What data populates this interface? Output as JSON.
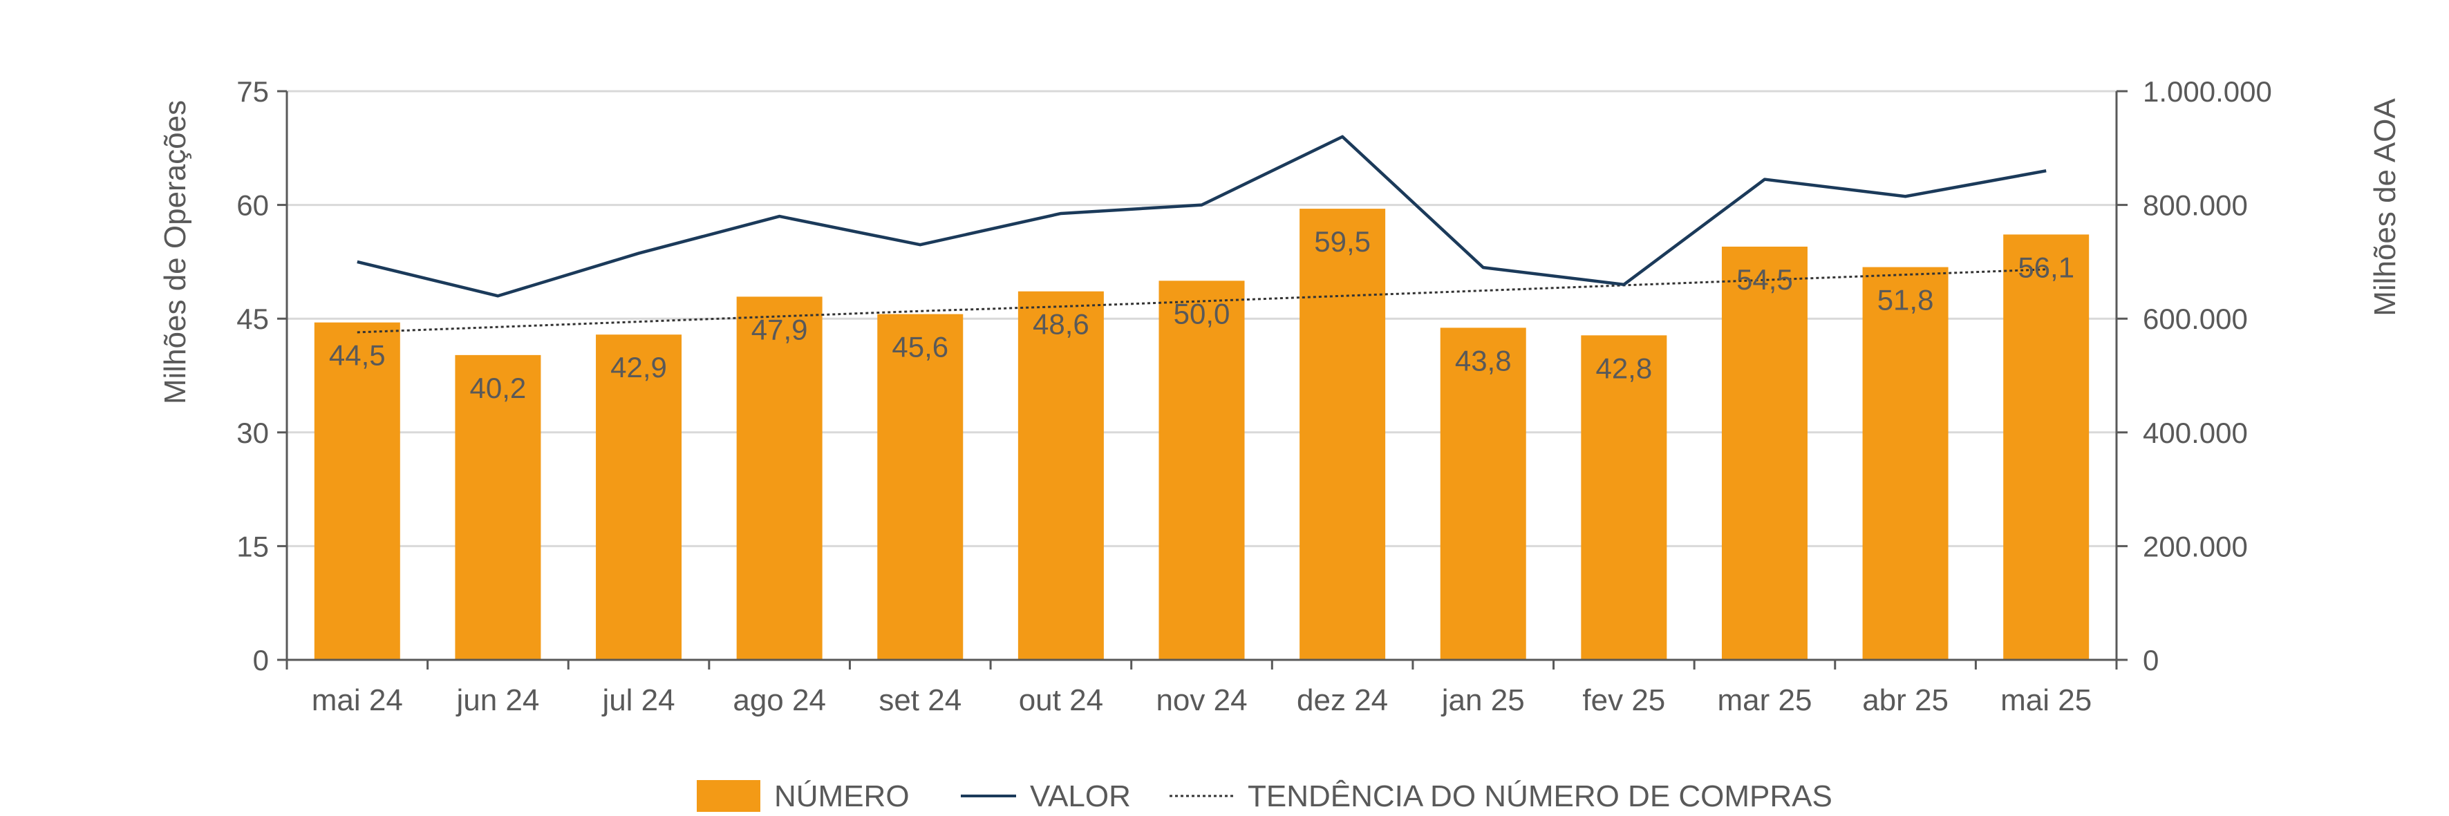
{
  "chart_data": {
    "type": "bar",
    "categories": [
      "mai 24",
      "jun 24",
      "jul 24",
      "ago 24",
      "set 24",
      "out 24",
      "nov 24",
      "dez 24",
      "jan 25",
      "fev 25",
      "mar 25",
      "abr 25",
      "mai 25"
    ],
    "series": [
      {
        "name": "NÚMERO",
        "type": "bar",
        "axis": "left",
        "values": [
          44.5,
          40.2,
          42.9,
          47.9,
          45.6,
          48.6,
          50.0,
          59.5,
          43.8,
          42.8,
          54.5,
          51.8,
          56.1
        ],
        "labels": [
          "44,5",
          "40,2",
          "42,9",
          "47,9",
          "45,6",
          "48,6",
          "50,0",
          "59,5",
          "43,8",
          "42,8",
          "54,5",
          "51,8",
          "56,1"
        ],
        "color": "#F39A16"
      },
      {
        "name": "VALOR",
        "type": "line",
        "axis": "right",
        "values": [
          700000,
          640000,
          715000,
          780000,
          730000,
          785000,
          800000,
          920000,
          690000,
          660000,
          845000,
          815000,
          860000
        ],
        "color": "#1B3A5A"
      },
      {
        "name": "TENDÊNCIA DO NÚMERO DE COMPRAS",
        "type": "trendline",
        "axis": "left",
        "values": [
          43.2,
          43.9,
          44.6,
          45.3,
          46.0,
          46.6,
          47.3,
          48.0,
          48.7,
          49.4,
          50.1,
          50.8,
          51.5
        ],
        "color": "#333333"
      }
    ],
    "y_left": {
      "label": "Milhões de Operações",
      "lim": [
        0,
        75
      ],
      "ticks": [
        0,
        15,
        30,
        45,
        60,
        75
      ],
      "tick_labels": [
        "0",
        "15",
        "30",
        "45",
        "60",
        "75"
      ]
    },
    "y_right": {
      "label": "Milhões de AOA",
      "lim": [
        0,
        1000000
      ],
      "ticks": [
        0,
        200000,
        400000,
        600000,
        800000,
        1000000
      ],
      "tick_labels": [
        "0",
        "200.000",
        "400.000",
        "600.000",
        "800.000",
        "1.000.000"
      ]
    },
    "grid": true,
    "legend": "bottom",
    "legend_labels": [
      "NÚMERO",
      "VALOR",
      "TENDÊNCIA DO NÚMERO DE COMPRAS"
    ],
    "colors": {
      "bar": "#F39A16",
      "line": "#1B3A5A",
      "trend": "#333333",
      "grid": "#D9D9D9",
      "axis": "#595959"
    }
  }
}
